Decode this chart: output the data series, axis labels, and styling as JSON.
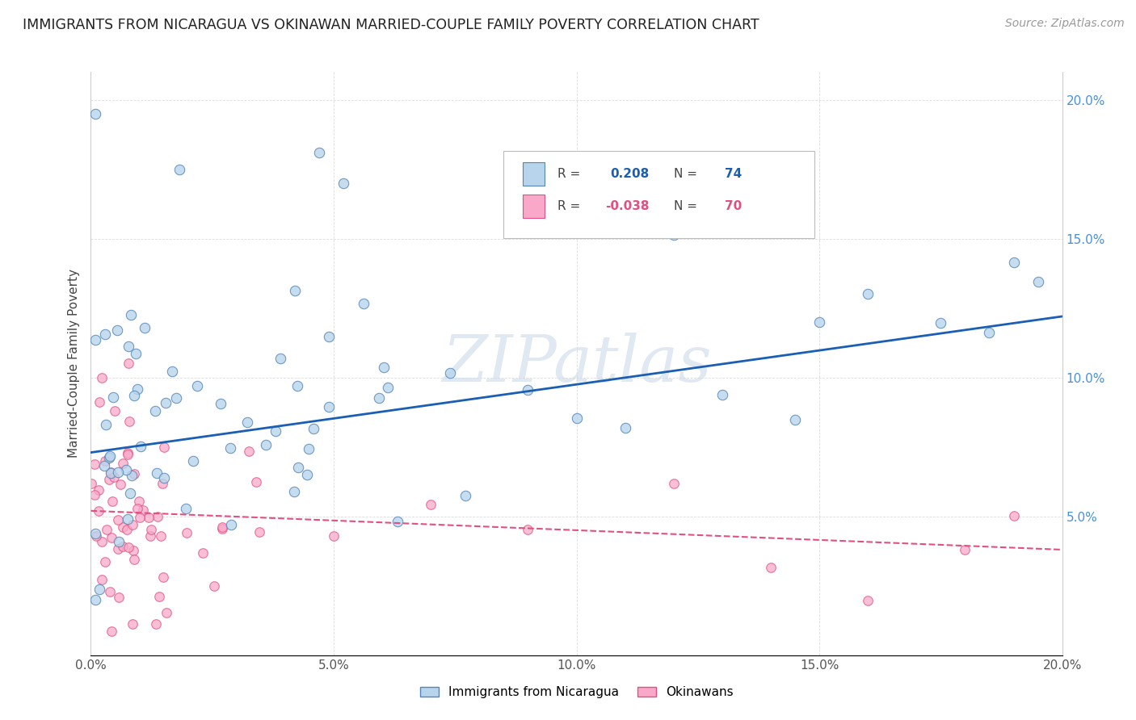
{
  "title": "IMMIGRANTS FROM NICARAGUA VS OKINAWAN MARRIED-COUPLE FAMILY POVERTY CORRELATION CHART",
  "source": "Source: ZipAtlas.com",
  "ylabel": "Married-Couple Family Poverty",
  "watermark": "ZIPatlas",
  "blue_label": "Immigrants from Nicaragua",
  "pink_label": "Okinawans",
  "R_blue": 0.208,
  "N_blue": 74,
  "R_pink": -0.038,
  "N_pink": 70,
  "blue_line_start_y": 0.073,
  "blue_line_end_y": 0.122,
  "pink_line_start_y": 0.052,
  "pink_line_end_y": 0.038,
  "xlim": [
    0.0,
    0.2
  ],
  "ylim": [
    0.0,
    0.21
  ],
  "blue_fill": "#b8d4ec",
  "blue_edge": "#5585b5",
  "pink_fill": "#f9a8c9",
  "pink_edge": "#e05080",
  "blue_line_color": "#1a5fb4",
  "pink_line_color": "#e05080",
  "grid_color": "#cccccc",
  "title_color": "#222222",
  "source_color": "#999999",
  "watermark_color": "#ccd9e8",
  "right_tick_color": "#4a90d9",
  "figsize": [
    14.06,
    8.92
  ],
  "dpi": 100
}
